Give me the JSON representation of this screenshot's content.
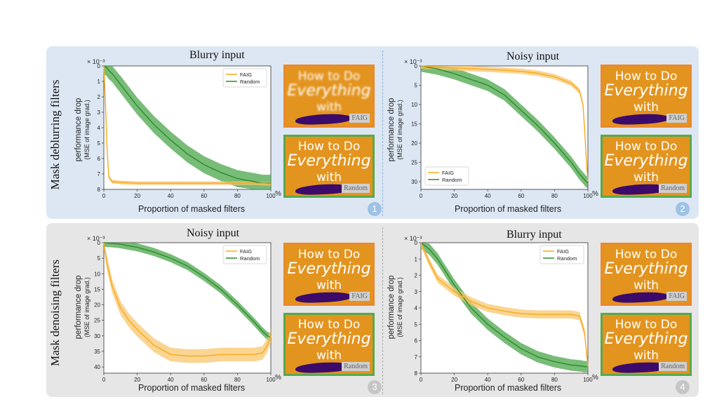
{
  "rows": [
    {
      "label": "Mask deblurring filters"
    },
    {
      "label": "Mask denoising filters"
    }
  ],
  "axis_common": {
    "xlabel": "Proportion of masked filters",
    "x_unit": "%",
    "ylabel": "performance drop",
    "ylabel_sub": "(MSE of image grad.)",
    "y_multiplier": "× 10⁻³"
  },
  "thumbnails": {
    "line1": "How to Do",
    "line2": "Everything",
    "line3": "with",
    "tag_faig": "FAIG",
    "tag_random": "Random"
  },
  "colors": {
    "faig": "#f7a91e",
    "faig_band": "#f8c76e",
    "random": "#2e8b2e",
    "random_band": "#4aa64a",
    "thumb_border_faig": "#e88a2e",
    "thumb_border_random": "#58a94c"
  },
  "chart_data": [
    {
      "type": "line",
      "title": "Blurry input",
      "badge": "1",
      "xlim": [
        0,
        100
      ],
      "xticks": [
        0,
        20,
        40,
        60,
        80,
        100
      ],
      "ylim": [
        0,
        8
      ],
      "y_inverted": true,
      "yticks": [
        0,
        1,
        2,
        3,
        4,
        5,
        6,
        7,
        8
      ],
      "legend_position": "top-right",
      "x": [
        0,
        1,
        2,
        3,
        5,
        10,
        20,
        30,
        40,
        50,
        60,
        70,
        80,
        90,
        95,
        100
      ],
      "series": [
        {
          "name": "FAIG",
          "values": [
            0,
            2.5,
            5.5,
            7.2,
            7.5,
            7.55,
            7.6,
            7.6,
            7.6,
            7.6,
            7.6,
            7.6,
            7.6,
            7.6,
            7.62,
            7.65
          ],
          "spread": 0.12
        },
        {
          "name": "Random",
          "values": [
            0,
            0.05,
            0.15,
            0.3,
            0.5,
            1.2,
            2.6,
            3.8,
            4.8,
            5.7,
            6.4,
            6.9,
            7.3,
            7.5,
            7.6,
            7.6
          ],
          "spread": 0.55
        }
      ]
    },
    {
      "type": "line",
      "title": "Noisy input",
      "badge": "2",
      "xlim": [
        0,
        100
      ],
      "xticks": [
        0,
        20,
        40,
        60,
        80,
        100
      ],
      "ylim": [
        0,
        32
      ],
      "y_inverted": true,
      "yticks": [
        0,
        5,
        10,
        15,
        20,
        25,
        30
      ],
      "legend_position": "bottom-left",
      "x": [
        0,
        10,
        20,
        30,
        40,
        50,
        60,
        70,
        80,
        90,
        95,
        97,
        98,
        99,
        100
      ],
      "series": [
        {
          "name": "FAIG",
          "values": [
            0,
            0.3,
            0.5,
            0.7,
            0.9,
            1.1,
            1.4,
            1.9,
            2.8,
            4.5,
            6.5,
            10,
            16,
            24,
            30
          ],
          "spread": 0.7
        },
        {
          "name": "Random",
          "values": [
            0,
            0.8,
            2.0,
            3.5,
            5.0,
            7.5,
            11.5,
            15.5,
            20.0,
            25.0,
            28.0,
            29.0,
            29.5,
            30.0,
            30.3
          ],
          "spread": 1.5
        }
      ]
    },
    {
      "type": "line",
      "title": "Noisy input",
      "badge": "3",
      "xlim": [
        0,
        100
      ],
      "xticks": [
        0,
        20,
        40,
        60,
        80,
        100
      ],
      "ylim": [
        0,
        42
      ],
      "y_inverted": true,
      "yticks": [
        0,
        5,
        10,
        15,
        20,
        25,
        30,
        35,
        40
      ],
      "legend_position": "top-right",
      "x": [
        0,
        2,
        5,
        10,
        15,
        20,
        30,
        40,
        50,
        60,
        70,
        80,
        90,
        95,
        98,
        100
      ],
      "series": [
        {
          "name": "FAIG",
          "values": [
            0,
            7,
            14,
            21,
            25,
            28,
            33,
            36,
            36.5,
            36.5,
            36,
            36,
            36,
            35.5,
            33,
            30
          ],
          "spread": 2.2
        },
        {
          "name": "Random",
          "values": [
            0,
            0.1,
            0.2,
            0.5,
            1.0,
            1.5,
            3.0,
            5.0,
            7.5,
            11.0,
            15.0,
            20.0,
            25.5,
            28.5,
            30.0,
            30.5
          ],
          "spread": 1.3
        }
      ]
    },
    {
      "type": "line",
      "title": "Blurry input",
      "badge": "4",
      "xlim": [
        0,
        100
      ],
      "xticks": [
        0,
        20,
        40,
        60,
        80,
        100
      ],
      "ylim": [
        0,
        8
      ],
      "y_inverted": true,
      "yticks": [
        0,
        1,
        2,
        3,
        4,
        5,
        6,
        7,
        8
      ],
      "legend_position": "top-right",
      "x": [
        0,
        5,
        10,
        15,
        20,
        30,
        40,
        50,
        60,
        70,
        80,
        90,
        95,
        98,
        100
      ],
      "series": [
        {
          "name": "FAIG",
          "values": [
            0,
            1.2,
            2.2,
            2.6,
            3.0,
            3.6,
            4.0,
            4.2,
            4.35,
            4.4,
            4.4,
            4.4,
            4.5,
            5.5,
            7.6
          ],
          "spread": 0.25
        },
        {
          "name": "Random",
          "values": [
            0,
            0.4,
            1.0,
            1.8,
            2.6,
            4.0,
            5.0,
            5.8,
            6.5,
            7.0,
            7.3,
            7.5,
            7.55,
            7.6,
            7.6
          ],
          "spread": 0.35
        }
      ]
    }
  ]
}
